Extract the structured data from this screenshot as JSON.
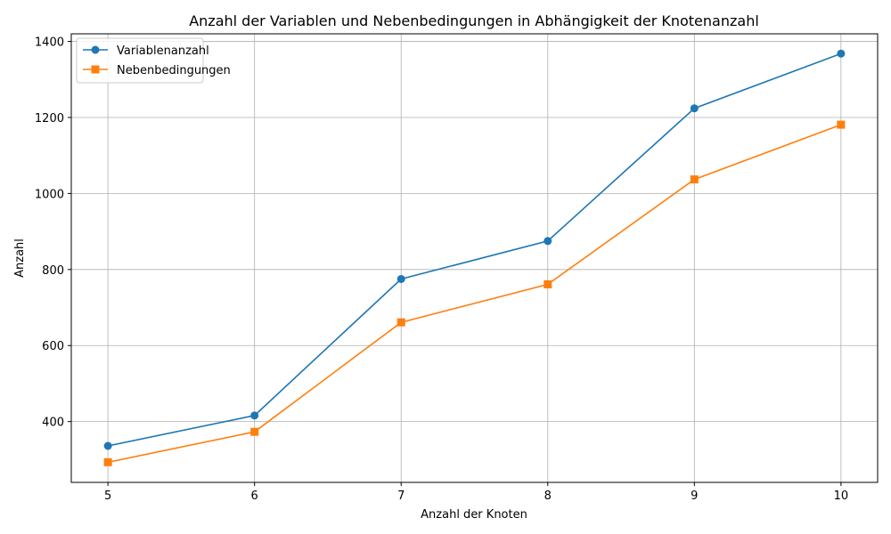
{
  "chart_data": {
    "type": "line",
    "title": "Anzahl der Variablen und Nebenbedingungen in Abhängigkeit der Knotenanzahl",
    "xlabel": "Anzahl der Knoten",
    "ylabel": "Anzahl",
    "x": [
      5,
      6,
      7,
      8,
      9,
      10
    ],
    "xlim": [
      4.75,
      10.25
    ],
    "ylim": [
      240,
      1420
    ],
    "xticks": [
      5,
      6,
      7,
      8,
      9,
      10
    ],
    "yticks": [
      400,
      600,
      800,
      1000,
      1200,
      1400
    ],
    "grid": true,
    "legend_position": "top-left",
    "series": [
      {
        "name": "Variablenanzahl",
        "values": [
          336,
          416,
          775,
          875,
          1224,
          1368
        ],
        "color": "#1f77b4",
        "marker": "circle"
      },
      {
        "name": "Nebenbedingungen",
        "values": [
          293,
          373,
          661,
          761,
          1037,
          1181
        ],
        "color": "#ff7f0e",
        "marker": "square"
      }
    ]
  }
}
